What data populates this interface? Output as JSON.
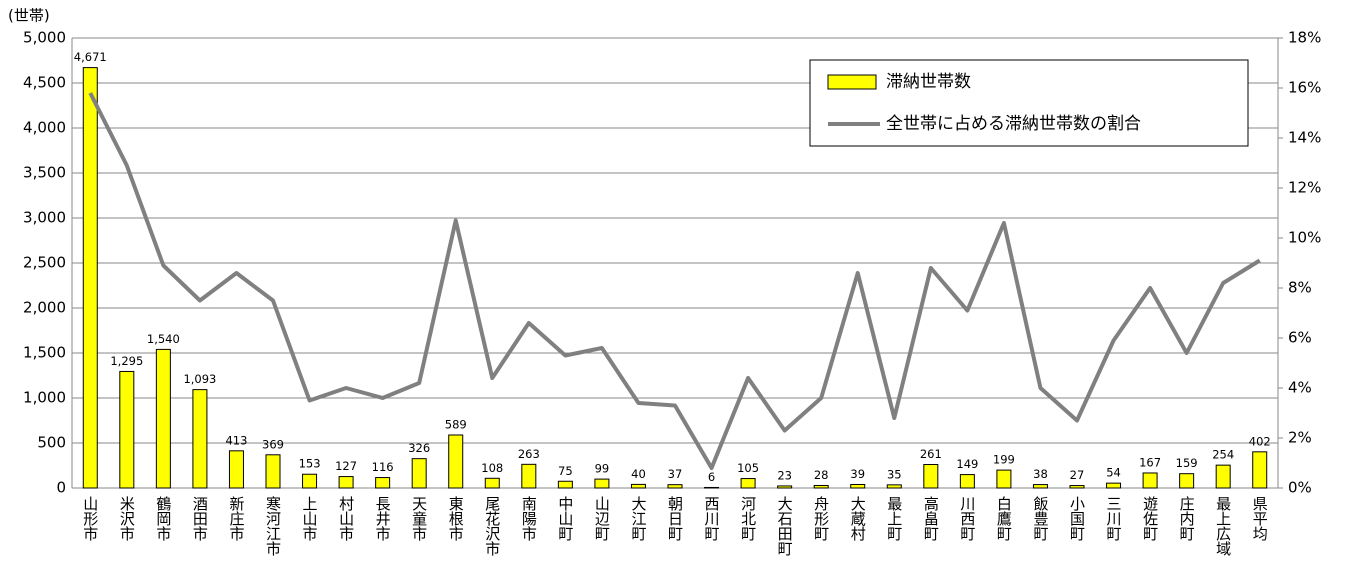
{
  "chart_data": {
    "type": "bar_line",
    "y_axis_label": "(世帯)",
    "categories": [
      "山形市",
      "米沢市",
      "鶴岡市",
      "酒田市",
      "新庄市",
      "寒河江市",
      "上山市",
      "村山市",
      "長井市",
      "天童市",
      "東根市",
      "尾花沢市",
      "南陽市",
      "中山町",
      "山辺町",
      "大江町",
      "朝日町",
      "西川町",
      "河北町",
      "大石田町",
      "舟形町",
      "大蔵村",
      "最上町",
      "高畠町",
      "川西町",
      "白鷹町",
      "飯豊町",
      "小国町",
      "三川町",
      "遊佐町",
      "庄内町",
      "最上広域",
      "県平均"
    ],
    "series": [
      {
        "name": "滞納世帯数",
        "type": "bar",
        "color": "#ffff00",
        "values": [
          4671,
          1295,
          1540,
          1093,
          413,
          369,
          153,
          127,
          116,
          326,
          589,
          108,
          263,
          75,
          99,
          40,
          37,
          6,
          105,
          23,
          28,
          39,
          35,
          261,
          149,
          199,
          38,
          27,
          54,
          167,
          159,
          254,
          402
        ],
        "value_labels": [
          "4,671",
          "1,295",
          "1,540",
          "1,093",
          "413",
          "369",
          "153",
          "127",
          "116",
          "326",
          "589",
          "108",
          "263",
          "75",
          "99",
          "40",
          "37",
          "6",
          "105",
          "23",
          "28",
          "39",
          "35",
          "261",
          "149",
          "199",
          "38",
          "27",
          "54",
          "167",
          "159",
          "254",
          "402"
        ]
      },
      {
        "name": "全世帯に占める滞納世帯数の割合",
        "type": "line",
        "color": "#808080",
        "axis": "y2",
        "values": [
          15.8,
          12.9,
          8.9,
          7.5,
          8.6,
          7.5,
          3.5,
          4.0,
          3.6,
          4.2,
          10.7,
          4.4,
          6.6,
          5.3,
          5.6,
          3.4,
          3.3,
          0.8,
          4.4,
          2.3,
          3.6,
          8.6,
          2.8,
          8.8,
          7.1,
          10.6,
          4.0,
          2.7,
          5.9,
          8.0,
          5.4,
          8.2,
          9.1
        ]
      }
    ],
    "ylim": [
      0,
      5000
    ],
    "yticks": [
      0,
      500,
      {
        "value": 1000,
        "label": "1,000"
      },
      {
        "value": 1500,
        "label": "1,500"
      },
      {
        "value": 2000,
        "label": "2,000"
      },
      {
        "value": 2500,
        "label": "2,500"
      },
      {
        "value": 3000,
        "label": "3,000"
      },
      {
        "value": 3500,
        "label": "3,500"
      },
      {
        "value": 4000,
        "label": "4,000"
      },
      {
        "value": 4500,
        "label": "4,500"
      },
      {
        "value": 5000,
        "label": "5,000"
      }
    ],
    "y2lim": [
      0,
      18
    ],
    "y2ticks": [
      {
        "value": 0,
        "label": "0%"
      },
      {
        "value": 2,
        "label": "2%"
      },
      {
        "value": 4,
        "label": "4%"
      },
      {
        "value": 6,
        "label": "6%"
      },
      {
        "value": 8,
        "label": "8%"
      },
      {
        "value": 10,
        "label": "10%"
      },
      {
        "value": 12,
        "label": "12%"
      },
      {
        "value": 14,
        "label": "14%"
      },
      {
        "value": 16,
        "label": "16%"
      },
      {
        "value": 18,
        "label": "18%"
      }
    ],
    "grid": true,
    "legend": "upper right"
  }
}
